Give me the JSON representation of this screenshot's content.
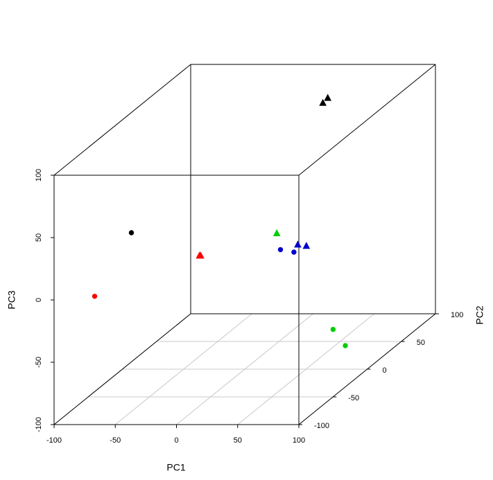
{
  "chart_data": {
    "type": "scatter3d",
    "xlabel": "PC1",
    "ylabel": "PC2",
    "zlabel": "PC3",
    "xlim": [
      -100,
      100
    ],
    "xticks": [
      -100,
      -50,
      0,
      50,
      100
    ],
    "ylim": [
      -100,
      100
    ],
    "yticks": [
      -100,
      -50,
      0,
      50,
      100
    ],
    "zlim": [
      -100,
      100
    ],
    "zticks": [
      -100,
      -50,
      0,
      50,
      100
    ],
    "grid": true,
    "series": [
      {
        "color": "#000000",
        "marker": "circle",
        "x": [
          -48
        ],
        "y": [
          -80
        ],
        "z": [
          45
        ]
      },
      {
        "color": "#000000",
        "marker": "triangle",
        "x": [
          8,
          12
        ],
        "y": [
          100,
          100
        ],
        "z": [
          69,
          73
        ]
      },
      {
        "color": "#ff0000",
        "marker": "circle",
        "x": [
          -78
        ],
        "y": [
          -80
        ],
        "z": [
          -6
        ]
      },
      {
        "color": "#ff0000",
        "marker": "triangle",
        "x": [
          -37,
          -36
        ],
        "y": [
          0,
          0
        ],
        "z": [
          -9,
          -9
        ]
      },
      {
        "color": "#00cd00",
        "marker": "circle",
        "x": [
          61,
          71
        ],
        "y": [
          20,
          20
        ],
        "z": [
          -77,
          -90
        ]
      },
      {
        "color": "#00cd00",
        "marker": "triangle",
        "x": [
          15
        ],
        "y": [
          20
        ],
        "z": [
          0
        ]
      },
      {
        "color": "#0000cd",
        "marker": "circle",
        "x": [
          18,
          29
        ],
        "y": [
          20,
          20
        ],
        "z": [
          -13,
          -15
        ]
      },
      {
        "color": "#0000cd",
        "marker": "triangle",
        "x": [
          21,
          28
        ],
        "y": [
          40,
          40
        ],
        "z": [
          -18,
          -19
        ]
      }
    ]
  }
}
